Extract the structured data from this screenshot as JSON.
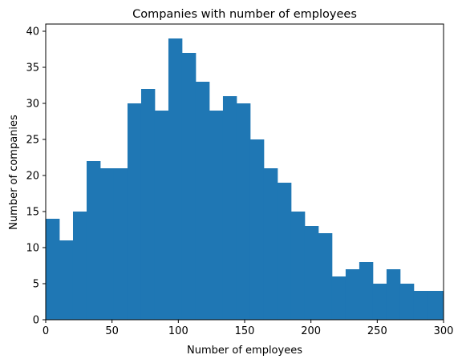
{
  "chart_data": {
    "type": "bar",
    "title": "Companies with number of employees",
    "xlabel": "Number of employees",
    "ylabel": "Number of companies",
    "xlim": [
      0,
      300
    ],
    "ylim": [
      0,
      41
    ],
    "bin_width": 10.28,
    "bin_start": 0,
    "x_ticks": [
      0,
      50,
      100,
      150,
      200,
      250,
      300
    ],
    "y_ticks": [
      0,
      5,
      10,
      15,
      20,
      25,
      30,
      35,
      40
    ],
    "values": [
      14,
      11,
      15,
      22,
      21,
      21,
      30,
      32,
      29,
      39,
      37,
      33,
      29,
      31,
      30,
      25,
      21,
      19,
      15,
      13,
      12,
      6,
      7,
      8,
      5,
      7,
      5,
      4,
      4,
      4
    ],
    "bar_color": "#1f77b4",
    "grid": false,
    "legend": "none"
  }
}
